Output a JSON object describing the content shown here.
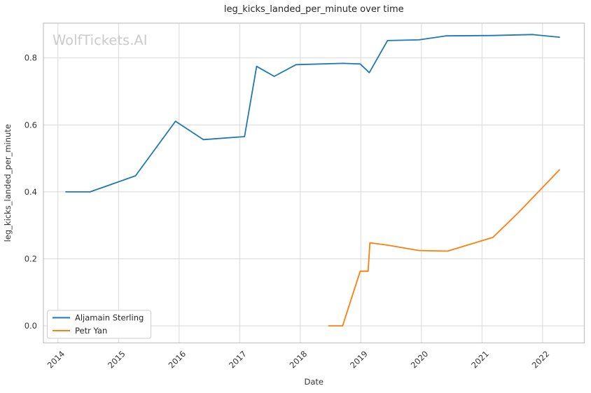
{
  "watermark": {
    "text": "WolfTickets.AI",
    "color": "#cbcbcb"
  },
  "chart_data": {
    "type": "line",
    "title": "leg_kicks_landed_per_minute over time",
    "xlabel": "Date",
    "ylabel": "leg_kicks_landed_per_minute",
    "x_unit": "decimal_year",
    "xlim": [
      2013.76,
      2022.69
    ],
    "ylim": [
      -0.051,
      0.904
    ],
    "x_tick_values": [
      2014,
      2015,
      2016,
      2017,
      2018,
      2019,
      2020,
      2021,
      2022
    ],
    "x_tick_labels": [
      "2014",
      "2015",
      "2016",
      "2017",
      "2018",
      "2019",
      "2020",
      "2021",
      "2022"
    ],
    "y_tick_values": [
      0.0,
      0.2,
      0.4,
      0.6,
      0.8
    ],
    "y_tick_labels": [
      "0.0",
      "0.2",
      "0.4",
      "0.6",
      "0.8"
    ],
    "grid": true,
    "legend": {
      "position": "lower-left",
      "entries": [
        "Aljamain Sterling",
        "Petr Yan"
      ]
    },
    "series": [
      {
        "name": "Aljamain Sterling",
        "color": "#1f77b4",
        "points": [
          [
            2014.13,
            0.4
          ],
          [
            2014.53,
            0.4
          ],
          [
            2015.28,
            0.448
          ],
          [
            2015.94,
            0.611
          ],
          [
            2016.4,
            0.556
          ],
          [
            2017.08,
            0.565
          ],
          [
            2017.28,
            0.775
          ],
          [
            2017.57,
            0.745
          ],
          [
            2017.93,
            0.78
          ],
          [
            2018.71,
            0.784
          ],
          [
            2018.99,
            0.782
          ],
          [
            2019.14,
            0.756
          ],
          [
            2019.44,
            0.852
          ],
          [
            2019.96,
            0.854
          ],
          [
            2020.41,
            0.866
          ],
          [
            2021.18,
            0.867
          ],
          [
            2021.83,
            0.87
          ],
          [
            2022.28,
            0.862
          ]
        ]
      },
      {
        "name": "Petr Yan",
        "color": "#ff7f0e",
        "points": [
          [
            2018.47,
            0.0
          ],
          [
            2018.7,
            0.0
          ],
          [
            2018.99,
            0.163
          ],
          [
            2019.12,
            0.163
          ],
          [
            2019.15,
            0.248
          ],
          [
            2019.44,
            0.241
          ],
          [
            2019.96,
            0.225
          ],
          [
            2020.43,
            0.223
          ],
          [
            2021.18,
            0.264
          ],
          [
            2021.6,
            0.338
          ],
          [
            2022.28,
            0.466
          ]
        ]
      }
    ],
    "style": {
      "grid_color": "#d9d9d9",
      "border_color": "#c3c3c3",
      "title_color": "#262626",
      "tick_color": "#333333",
      "label_color": "#333333",
      "legend_border": "#cccccc",
      "legend_bg": "#ffffff"
    }
  }
}
